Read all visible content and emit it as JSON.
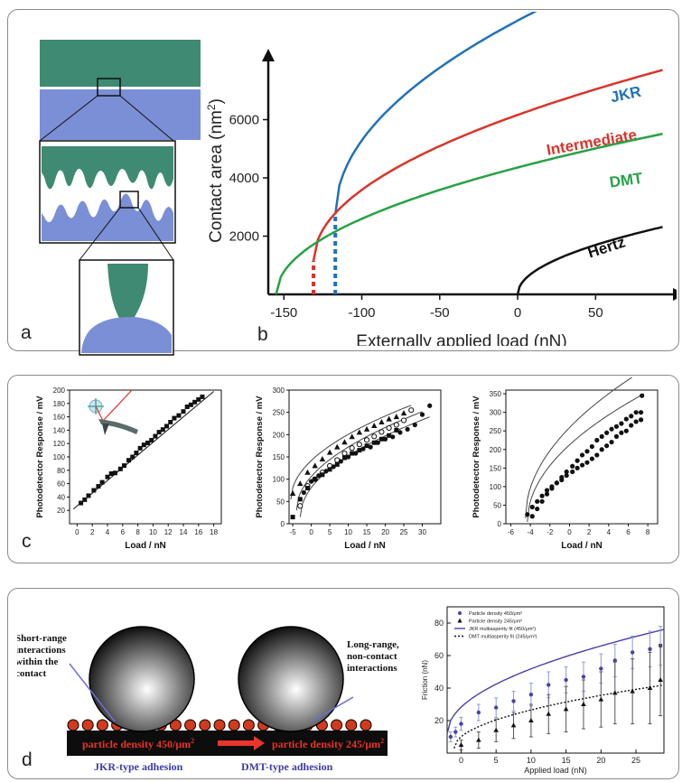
{
  "colors": {
    "teal": "#3e8a72",
    "periwinkle": "#7b8fd6",
    "jkr": "#2271b8",
    "intermediate": "#d9342b",
    "dmt": "#25a244",
    "hertz": "#111111",
    "d_label_blue": "#3b3ba8",
    "d_fit_purple": "#4a3fa8",
    "d_particle": "#d23a1e"
  },
  "panel_a": {
    "label": "a"
  },
  "panel_b": {
    "label": "b",
    "chart_data": {
      "type": "line",
      "xlabel": "Externally applied load (nN)",
      "ylabel": "Contact area (nm²)",
      "ylabel_main": "Contact area (nm",
      "ylabel_sup": "2",
      "ylabel_end": ")",
      "xlim": [
        -160,
        95
      ],
      "ylim": [
        0,
        8000
      ],
      "xticks": [
        -150,
        -100,
        -50,
        0,
        50
      ],
      "xtick_labels": [
        "-150",
        "-100",
        "-50",
        "0",
        "50"
      ],
      "yticks": [
        2000,
        4000,
        6000
      ],
      "ytick_labels": [
        "2000",
        "4000",
        "6000"
      ],
      "series": [
        {
          "name": "JKR",
          "x0": -117,
          "y0": 2750,
          "k": 615,
          "x1": 93,
          "color": "#2271b8"
        },
        {
          "name": "Intermediate",
          "x0": -131,
          "y0": 1150,
          "k": 438,
          "x1": 93,
          "color": "#d9342b"
        },
        {
          "name": "DMT",
          "x0": -155,
          "y0": 0,
          "k": 350,
          "x1": 93,
          "color": "#25a244"
        },
        {
          "name": "Hertz",
          "x0": 0,
          "y0": 0,
          "k": 240,
          "x1": 93,
          "color": "#111111"
        }
      ],
      "dashed_jumps": [
        {
          "x": -131,
          "y": 1150,
          "color": "#d9342b"
        },
        {
          "x": -117,
          "y": 2750,
          "color": "#2271b8"
        }
      ]
    }
  },
  "panel_c": {
    "label": "c",
    "ylabel": "Photodetector Response / mV",
    "xlabel": "Load / nN",
    "chart_data": [
      {
        "type": "scatter",
        "xlim": [
          -1,
          19
        ],
        "ylim": [
          0,
          200
        ],
        "xticks": [
          0,
          2,
          4,
          6,
          8,
          10,
          12,
          14,
          16,
          18
        ],
        "xtick_labels": [
          "0",
          "2",
          "4",
          "6",
          "8",
          "10",
          "12",
          "14",
          "16",
          "18"
        ],
        "yticks": [
          20,
          40,
          60,
          80,
          100,
          120,
          140,
          160,
          180,
          200
        ],
        "ytick_labels": [
          "20",
          "40",
          "60",
          "80",
          "100",
          "120",
          "140",
          "160",
          "180",
          "200"
        ],
        "fit": {
          "type": "linear",
          "x": [
            -0.5,
            18
          ],
          "y": [
            22,
            198
          ]
        },
        "series": [
          {
            "name": "",
            "marker": "square",
            "x": [
              0.5,
              1.0,
              1.5,
              2.2,
              2.8,
              3.3,
              4.0,
              4.5,
              5.0,
              5.7,
              6.2,
              6.8,
              7.3,
              7.8,
              8.3,
              8.8,
              9.3,
              9.8,
              10.3,
              10.8,
              11.3,
              11.8,
              12.3,
              12.8,
              13.4,
              14.0,
              14.5,
              15.0,
              15.5,
              16.0,
              16.5
            ],
            "y": [
              31,
              36,
              42,
              50,
              56,
              62,
              70,
              75,
              76,
              82,
              87,
              95,
              100,
              106,
              113,
              118,
              121,
              125,
              131,
              137,
              141,
              146,
              152,
              158,
              162,
              168,
              175,
              178,
              182,
              186,
              190
            ]
          }
        ]
      },
      {
        "type": "scatter",
        "xlim": [
          -6,
          35
        ],
        "ylim": [
          0,
          300
        ],
        "xticks": [
          -5,
          0,
          5,
          10,
          15,
          20,
          25,
          30
        ],
        "xtick_labels": [
          "-5",
          "0",
          "5",
          "10",
          "15",
          "20",
          "25",
          "30"
        ],
        "yticks": [
          0,
          50,
          100,
          150,
          200,
          250,
          300
        ],
        "ytick_labels": [
          "0",
          "50",
          "100",
          "150",
          "200",
          "250",
          "300"
        ],
        "fits": [
          {
            "x0": -5.5,
            "y0": 55,
            "k": 37,
            "x1": 27
          },
          {
            "x0": -4.0,
            "y0": 30,
            "k": 38,
            "x1": 30
          },
          {
            "x0": -3.0,
            "y0": 15,
            "k": 38,
            "x1": 32
          }
        ],
        "series": [
          {
            "name": "",
            "marker": "triangle",
            "x": [
              -5,
              -3,
              -1,
              1,
              3,
              5,
              7,
              9,
              11,
              13,
              15,
              17,
              19,
              21,
              23,
              25
            ],
            "y": [
              68,
              90,
              115,
              130,
              145,
              160,
              172,
              183,
              195,
              205,
              212,
              220,
              228,
              235,
              240,
              248
            ]
          },
          {
            "name": "",
            "marker": "open-circle",
            "x": [
              -3,
              -1,
              1,
              3,
              5,
              7,
              9,
              11,
              13,
              15,
              17,
              19,
              21,
              23,
              25,
              27
            ],
            "y": [
              40,
              85,
              100,
              115,
              130,
              143,
              158,
              170,
              178,
              188,
              196,
              206,
              215,
              222,
              232,
              255
            ]
          },
          {
            "name": "",
            "marker": "square",
            "x": [
              -5,
              -3,
              -1,
              1,
              3,
              5,
              7,
              9,
              11,
              13,
              15,
              17,
              19,
              21,
              23
            ],
            "y": [
              15,
              55,
              80,
              100,
              110,
              122,
              133,
              148,
              158,
              165,
              175,
              182,
              190,
              198,
              210
            ]
          },
          {
            "name": "",
            "marker": "dot",
            "x": [
              -2,
              0,
              2,
              4,
              6,
              8,
              10,
              12,
              14,
              16,
              18,
              20,
              22,
              24,
              26,
              28,
              30,
              32
            ],
            "y": [
              70,
              95,
              108,
              118,
              128,
              140,
              150,
              158,
              168,
              172,
              182,
              190,
              195,
              205,
              212,
              222,
              245,
              265
            ]
          }
        ]
      },
      {
        "type": "scatter",
        "xlim": [
          -6.5,
          9
        ],
        "ylim": [
          0,
          360
        ],
        "xticks": [
          -6,
          -4,
          -2,
          0,
          2,
          4,
          6,
          8
        ],
        "xtick_labels": [
          "-6",
          "-4",
          "-2",
          "0",
          "2",
          "4",
          "6",
          "8"
        ],
        "yticks": [
          0,
          50,
          100,
          150,
          200,
          250,
          300,
          350
        ],
        "ytick_labels": [
          "0",
          "50",
          "100",
          "150",
          "200",
          "250",
          "300",
          "350"
        ],
        "fits": [
          {
            "x0": -4.3,
            "y0": 5,
            "k": 100,
            "x1": 7.6
          },
          {
            "x0": -4.5,
            "y0": 15,
            "k": 115,
            "x1": 7.6
          }
        ],
        "series": [
          {
            "name": "",
            "marker": "dot",
            "x": [
              -4.3,
              -3.8,
              -3.3,
              -2.8,
              -2.3,
              -1.8,
              -1.3,
              -0.8,
              -0.3,
              0.3,
              0.8,
              1.3,
              1.8,
              2.3,
              2.8,
              3.3,
              3.8,
              4.3,
              4.8,
              5.3,
              5.8,
              6.3,
              6.8,
              7.3,
              7.4
            ],
            "y": [
              25,
              45,
              60,
              75,
              90,
              100,
              110,
              118,
              130,
              140,
              150,
              158,
              165,
              175,
              185,
              200,
              210,
              220,
              235,
              245,
              250,
              265,
              275,
              300,
              345
            ]
          },
          {
            "name": "",
            "marker": "dot",
            "x": [
              -3.8,
              -3.3,
              -2.8,
              -2.3,
              -1.8,
              -1.3,
              -0.8,
              -0.3,
              0.3,
              0.8,
              1.3,
              1.8,
              2.3,
              2.8,
              3.3,
              3.8,
              4.3,
              4.8,
              5.3,
              5.8,
              6.3,
              6.8,
              7.3
            ],
            "y": [
              20,
              40,
              60,
              80,
              95,
              110,
              125,
              140,
              155,
              170,
              185,
              195,
              208,
              225,
              235,
              245,
              255,
              262,
              270,
              282,
              290,
              300,
              280
            ]
          }
        ]
      }
    ]
  },
  "panel_d": {
    "label": "d",
    "schematic": {
      "short_range": "Short-range\ninteractions\nwithin the\ncontact",
      "long_range": "Long-range,\nnon-contact\ninteractions",
      "density_high": "particle density 450/μm",
      "density_low": "particle density 245/μm",
      "density_sup": "2",
      "jkr_label": "JKR-type adhesion",
      "dmt_label": "DMT-type adhesion"
    },
    "chart_data": {
      "type": "scatter",
      "xlabel": "Applied load (nN)",
      "ylabel": "Friction (nN)",
      "xlim": [
        -2,
        29
      ],
      "ylim": [
        0,
        90
      ],
      "xticks": [
        0,
        5,
        10,
        15,
        20,
        25
      ],
      "xtick_labels": [
        "0",
        "5",
        "10",
        "15",
        "20",
        "25"
      ],
      "yticks": [
        20,
        40,
        60,
        80
      ],
      "ytick_labels": [
        "20",
        "40",
        "60",
        "80"
      ],
      "legend": [
        {
          "label": "Particle density 450/μm²",
          "marker": "dot",
          "color": "#4a3fa8"
        },
        {
          "label": "Particle density 245/μm²",
          "marker": "triangle",
          "color": "#111111"
        },
        {
          "label": "JKR multiasperity fit (450/μm²)",
          "marker": "line",
          "color": "#4a3fa8"
        },
        {
          "label": "DMT multiasperity fit (245/μm²)",
          "marker": "dotted",
          "color": "#111111"
        }
      ],
      "series": [
        {
          "name": "Particle density 450/μm²",
          "x": [
            -1.5,
            -0.8,
            0,
            2.5,
            5,
            7.5,
            10,
            12.5,
            15,
            17.5,
            20,
            22,
            24.5,
            27,
            28.5
          ],
          "y": [
            10,
            13,
            18,
            25,
            28,
            32,
            36,
            42,
            45,
            47,
            52,
            57,
            62,
            64,
            66
          ],
          "err": [
            3,
            3,
            4,
            5,
            6,
            6,
            7,
            8,
            8,
            9,
            9,
            10,
            10,
            11,
            12
          ]
        },
        {
          "name": "Particle density 245/μm²",
          "x": [
            0,
            2.5,
            5,
            7.5,
            10,
            12.5,
            15,
            17.5,
            20,
            22,
            24.5,
            27,
            28.5
          ],
          "y": [
            5,
            8,
            14,
            17,
            20,
            24,
            27,
            30,
            33,
            37,
            38,
            40,
            45
          ],
          "err": [
            3,
            5,
            7,
            8,
            10,
            12,
            14,
            15,
            17,
            19,
            20,
            22,
            22
          ]
        }
      ],
      "fits": [
        {
          "name": "JKR multiasperity fit (450/μm²)",
          "x0": -2,
          "y0": 12,
          "k": 11.5,
          "x1": 29,
          "style": "solid"
        },
        {
          "name": "DMT multiasperity fit (245/μm²)",
          "x0": -1,
          "y0": 3,
          "k": 7.1,
          "x1": 29,
          "style": "dotted"
        }
      ]
    }
  }
}
